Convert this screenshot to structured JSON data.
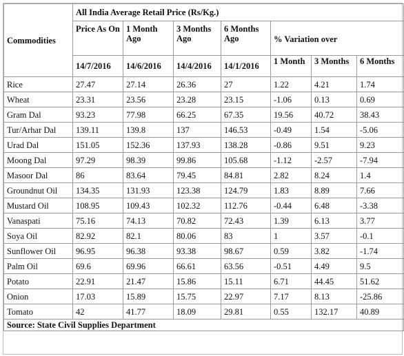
{
  "table": {
    "title": "All India Average Retail Price (Rs/Kg.)",
    "commodities_header": "Commodities",
    "columns": [
      {
        "label": "Price As On",
        "date": "14/7/2016"
      },
      {
        "label": "1 Month Ago",
        "date": "14/6/2016"
      },
      {
        "label": "3 Months Ago",
        "date": "14/4/2016"
      },
      {
        "label": "6 Months Ago",
        "date": "14/1/2016"
      }
    ],
    "variation_header": "% Variation over",
    "variation_sub": [
      "1 Month",
      "3 Months",
      "6 Months"
    ],
    "rows": [
      {
        "name": "Rice",
        "values": [
          "27.47",
          "27.14",
          "26.36",
          "27",
          "1.22",
          "4.21",
          "1.74"
        ]
      },
      {
        "name": "Wheat",
        "values": [
          "23.31",
          "23.56",
          "23.28",
          "23.15",
          "-1.06",
          "0.13",
          "0.69"
        ]
      },
      {
        "name": "Gram Dal",
        "values": [
          "93.23",
          "77.98",
          "66.25",
          "67.35",
          "19.56",
          "40.72",
          "38.43"
        ]
      },
      {
        "name": "Tur/Arhar Dal",
        "values": [
          "139.11",
          "139.8",
          "137",
          "146.53",
          "-0.49",
          "1.54",
          "-5.06"
        ]
      },
      {
        "name": "Urad Dal",
        "values": [
          "151.05",
          "152.36",
          "137.93",
          "138.28",
          "-0.86",
          "9.51",
          "9.23"
        ]
      },
      {
        "name": "Moong Dal",
        "values": [
          "97.29",
          "98.39",
          "99.86",
          "105.68",
          "-1.12",
          "-2.57",
          "-7.94"
        ]
      },
      {
        "name": "Masoor Dal",
        "values": [
          "86",
          "83.64",
          "79.45",
          "84.81",
          "2.82",
          "8.24",
          "1.4"
        ]
      },
      {
        "name": "Groundnut Oil",
        "values": [
          "134.35",
          "131.93",
          "123.38",
          "124.79",
          "1.83",
          "8.89",
          "7.66"
        ]
      },
      {
        "name": "Mustard Oil",
        "values": [
          "108.95",
          "109.43",
          "102.32",
          "112.76",
          "-0.44",
          "6.48",
          "-3.38"
        ]
      },
      {
        "name": "Vanaspati",
        "values": [
          "75.16",
          "74.13",
          "70.82",
          "72.43",
          "1.39",
          "6.13",
          "3.77"
        ]
      },
      {
        "name": "Soya Oil",
        "values": [
          "82.92",
          "82.1",
          "80.06",
          "83",
          "1",
          "3.57",
          "-0.1"
        ]
      },
      {
        "name": "Sunflower Oil",
        "values": [
          "96.95",
          "96.38",
          "93.38",
          "98.67",
          "0.59",
          "3.82",
          "-1.74"
        ]
      },
      {
        "name": "Palm Oil",
        "values": [
          "69.6",
          "69.96",
          "66.61",
          "63.56",
          "-0.51",
          "4.49",
          "9.5"
        ]
      },
      {
        "name": "Potato",
        "values": [
          "22.91",
          "21.47",
          "15.86",
          "15.11",
          "6.71",
          "44.45",
          "51.62"
        ]
      },
      {
        "name": "Onion",
        "values": [
          "17.03",
          "15.89",
          "15.75",
          "22.97",
          "7.17",
          "8.13",
          "-25.86"
        ]
      },
      {
        "name": "Tomato",
        "values": [
          "42",
          "41.77",
          "18.09",
          "29.81",
          "0.55",
          "132.17",
          "40.89"
        ]
      }
    ],
    "source": "Source: State Civil Supplies Department"
  }
}
